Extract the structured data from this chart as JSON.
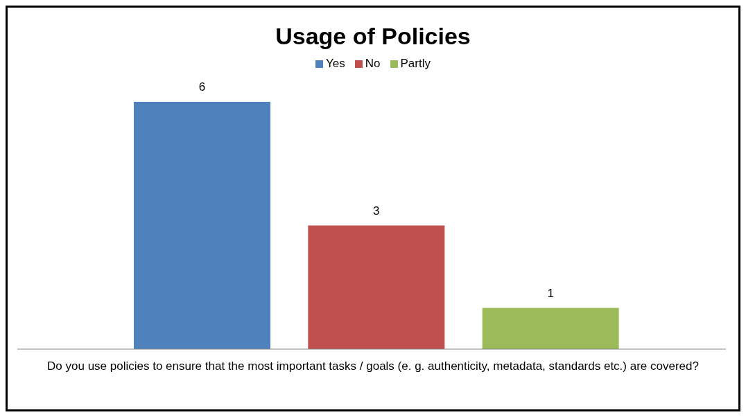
{
  "chart_data": {
    "type": "bar",
    "title": "Usage of Policies",
    "xlabel": "Do you use policies to ensure that the most important tasks / goals (e. g. authenticity, metadata, standards etc.) are covered?",
    "categories": [
      null,
      null,
      null
    ],
    "series": [
      {
        "name": "Yes",
        "color": "#4f81bd",
        "values": [
          6,
          null,
          null
        ]
      },
      {
        "name": "No",
        "color": "#c0504d",
        "values": [
          null,
          3,
          null
        ]
      },
      {
        "name": "Partly",
        "color": "#9bbb59",
        "values": [
          null,
          null,
          1
        ]
      }
    ],
    "stacked": true,
    "data_labels": true,
    "legend": "top"
  }
}
